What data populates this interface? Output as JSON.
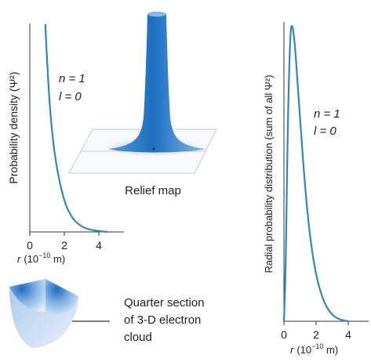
{
  "left_chart": {
    "ylabel": "Probability density (Ψ²)",
    "xlabel_var": "r",
    "xlabel_unit_prefix": "(10",
    "xlabel_exp": "−10",
    "xlabel_unit_suffix": " m)",
    "ticks": [
      "0",
      "2",
      "4"
    ],
    "n_label": "n = 1",
    "l_label": "l = 0"
  },
  "relief": {
    "label": "Relief map"
  },
  "cloud": {
    "label_line1": "Quarter section",
    "label_line2": "of 3-D electron",
    "label_line3": "cloud"
  },
  "right_chart": {
    "ylabel": "Radial probability distribution (sum of all Ψ²)",
    "xlabel_var": "r",
    "xlabel_unit_prefix": "(10",
    "xlabel_exp": "−10",
    "xlabel_unit_suffix": " m)",
    "ticks": [
      "0",
      "2",
      "4"
    ],
    "n_label": "n = 1",
    "l_label": "l = 0"
  },
  "chart_data": [
    {
      "type": "line",
      "xlim": [
        0,
        5
      ],
      "x": [
        0.9,
        1.0,
        1.2,
        1.5,
        2.0,
        2.5,
        3.0,
        3.5,
        4.0,
        4.5
      ],
      "values": [
        1.0,
        0.82,
        0.55,
        0.33,
        0.14,
        0.06,
        0.025,
        0.01,
        0.004,
        0.0
      ],
      "color": "#2f86c8"
    },
    {
      "type": "line",
      "xlim": [
        0,
        5
      ],
      "x": [
        0,
        0.1,
        0.25,
        0.4,
        0.53,
        0.7,
        1.0,
        1.3,
        1.6,
        2.0,
        2.5,
        3.0,
        3.5,
        4.0
      ],
      "values": [
        0,
        0.15,
        0.7,
        0.98,
        1.0,
        0.92,
        0.68,
        0.46,
        0.29,
        0.15,
        0.06,
        0.02,
        0.005,
        0
      ],
      "color": "#2f86c8"
    }
  ]
}
